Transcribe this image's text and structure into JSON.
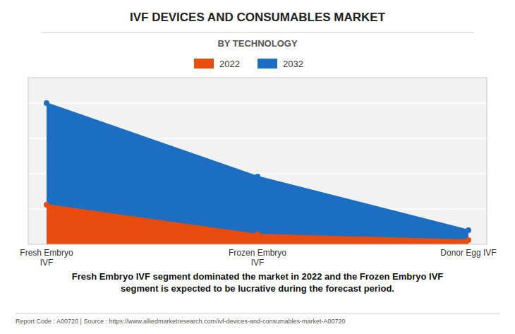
{
  "chart_data": {
    "type": "area",
    "title": "IVF DEVICES AND CONSUMABLES MARKET",
    "subtitle": "BY TECHNOLOGY",
    "categories": [
      "Fresh Embryo\nIVF",
      "Frozen Embryo\nIVF",
      "Donor Egg IVF"
    ],
    "series": [
      {
        "name": "2022",
        "color": "#E84C0E",
        "values": [
          0.28,
          0.07,
          0.03
        ]
      },
      {
        "name": "2032",
        "color": "#1B6EC2",
        "values": [
          1.0,
          0.48,
          0.1
        ]
      }
    ],
    "ylim": [
      0,
      1.18
    ],
    "yticks": [
      0.25,
      0.5,
      0.75,
      1.0
    ],
    "grid": true,
    "legend": "top",
    "tick_labels": "x",
    "annotations": [
      "Fresh Embryo IVF segment dominated the market in 2022 and the Frozen Embryo IVF\nsegment is expected to be lucrative during the forecast period.",
      "Report Code : A00720  |  Source : https://www.alliedmarketresearch.com/ivf-devices-and-consumables-market-A00720"
    ]
  }
}
